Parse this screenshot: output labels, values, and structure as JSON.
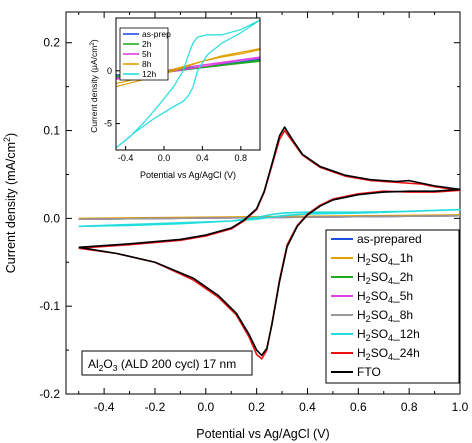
{
  "chart_data": [
    {
      "id": "main",
      "type": "line",
      "xlabel": "Potential vs  Ag/AgCl (V)",
      "ylabel": "Current density (mA/cm",
      "ylabel_sup": "2",
      "ylabel_close": ")",
      "xlim": [
        -0.55,
        1.0
      ],
      "ylim": [
        -0.2,
        0.235
      ],
      "xticks": [
        -0.4,
        -0.2,
        0.0,
        0.2,
        0.4,
        0.6,
        0.8,
        1.0
      ],
      "xtick_labels": [
        "-0.4",
        "-0.2",
        "0.0",
        "0.2",
        "0.4",
        "0.6",
        "0.8",
        "1.0"
      ],
      "yticks": [
        -0.2,
        -0.1,
        0.0,
        0.1,
        0.2
      ],
      "ytick_labels": [
        "-0.2",
        "-0.1",
        "0.0",
        "0.1",
        "0.2"
      ],
      "grid": false,
      "legend_position": "bottom-right",
      "annotation": {
        "prefix": "Al",
        "sub1": "2",
        "mid": "O",
        "sub2": "3",
        "suffix": " (ALD 200 cycl) 17 nm"
      },
      "series": [
        {
          "name": "as-prepared",
          "color": "#1f4fe0",
          "kind": "flat",
          "x": [
            -0.5,
            1.0
          ],
          "y": [
            -0.001,
            0.003
          ]
        },
        {
          "name": "H2SO4_1h",
          "label_prefix": "H",
          "label_sub": "2",
          "label_suffix": "SO",
          "label_sub2": "4",
          "label_tail": "_1h",
          "color": "#e0a000",
          "kind": "flat",
          "x": [
            -0.5,
            1.0
          ],
          "y": [
            0.0,
            0.004
          ]
        },
        {
          "name": "H2SO4_2h",
          "label_prefix": "H",
          "label_sub": "2",
          "label_suffix": "SO",
          "label_sub2": "4",
          "label_tail": "_2h",
          "color": "#22aa22",
          "kind": "flat",
          "x": [
            -0.5,
            1.0
          ],
          "y": [
            -0.001,
            0.003
          ]
        },
        {
          "name": "H2SO4_5h",
          "label_prefix": "H",
          "label_sub": "2",
          "label_suffix": "SO",
          "label_sub2": "4",
          "label_tail": "_5h",
          "color": "#e040e0",
          "kind": "flat",
          "x": [
            -0.5,
            1.0
          ],
          "y": [
            -0.001,
            0.003
          ]
        },
        {
          "name": "H2SO4_8h",
          "label_prefix": "H",
          "label_sub": "2",
          "label_suffix": "SO",
          "label_sub2": "4",
          "label_tail": "_8h",
          "color": "#999999",
          "kind": "flat",
          "x": [
            -0.5,
            1.0
          ],
          "y": [
            -0.001,
            0.003
          ]
        },
        {
          "name": "H2SO4_12h",
          "label_prefix": "H",
          "label_sub": "2",
          "label_suffix": "SO",
          "label_sub2": "4",
          "label_tail": "_12h",
          "color": "#22dddd",
          "kind": "loop",
          "forward": {
            "x": [
              -0.5,
              -0.3,
              -0.1,
              0.1,
              0.2,
              0.25,
              0.3,
              0.4,
              0.6,
              0.8,
              1.0
            ],
            "y": [
              -0.009,
              -0.008,
              -0.006,
              -0.003,
              0.001,
              0.004,
              0.006,
              0.007,
              0.007,
              0.008,
              0.01
            ]
          },
          "reverse": {
            "x": [
              1.0,
              0.8,
              0.6,
              0.4,
              0.3,
              0.2,
              0.1,
              -0.1,
              -0.3,
              -0.5
            ],
            "y": [
              0.01,
              0.008,
              0.006,
              0.005,
              0.003,
              -0.001,
              -0.003,
              -0.005,
              -0.007,
              -0.009
            ]
          }
        },
        {
          "name": "H2SO4_24h",
          "label_prefix": "H",
          "label_sub": "2",
          "label_suffix": "SO",
          "label_sub2": "4",
          "label_tail": "_24h",
          "color": "#ee1111",
          "kind": "loop",
          "forward": {
            "x": [
              -0.5,
              -0.3,
              -0.1,
              0.0,
              0.1,
              0.15,
              0.2,
              0.23,
              0.26,
              0.29,
              0.31,
              0.34,
              0.38,
              0.45,
              0.55,
              0.65,
              0.75,
              0.8,
              0.85,
              0.9,
              1.0
            ],
            "y": [
              -0.034,
              -0.03,
              -0.025,
              -0.02,
              -0.012,
              -0.003,
              0.01,
              0.03,
              0.06,
              0.09,
              0.1,
              0.088,
              0.072,
              0.058,
              0.048,
              0.043,
              0.041,
              0.04,
              0.039,
              0.036,
              0.032
            ]
          },
          "reverse": {
            "x": [
              1.0,
              0.9,
              0.8,
              0.7,
              0.6,
              0.5,
              0.45,
              0.4,
              0.36,
              0.32,
              0.29,
              0.26,
              0.24,
              0.22,
              0.2,
              0.17,
              0.12,
              0.05,
              -0.05,
              -0.2,
              -0.35,
              -0.5
            ],
            "y": [
              0.032,
              0.03,
              0.03,
              0.031,
              0.028,
              0.022,
              0.015,
              0.005,
              -0.008,
              -0.03,
              -0.07,
              -0.12,
              -0.15,
              -0.16,
              -0.155,
              -0.135,
              -0.11,
              -0.09,
              -0.07,
              -0.05,
              -0.04,
              -0.034
            ]
          }
        },
        {
          "name": "FTO",
          "color": "#000000",
          "kind": "loop",
          "forward": {
            "x": [
              -0.5,
              -0.3,
              -0.1,
              0.0,
              0.1,
              0.15,
              0.2,
              0.23,
              0.26,
              0.29,
              0.31,
              0.34,
              0.38,
              0.45,
              0.55,
              0.65,
              0.75,
              0.8,
              0.85,
              0.9,
              1.0
            ],
            "y": [
              -0.033,
              -0.029,
              -0.024,
              -0.019,
              -0.011,
              -0.002,
              0.011,
              0.031,
              0.062,
              0.094,
              0.104,
              0.09,
              0.073,
              0.059,
              0.049,
              0.044,
              0.042,
              0.043,
              0.04,
              0.037,
              0.033
            ]
          },
          "reverse": {
            "x": [
              1.0,
              0.9,
              0.8,
              0.7,
              0.6,
              0.5,
              0.45,
              0.4,
              0.36,
              0.32,
              0.29,
              0.26,
              0.24,
              0.22,
              0.2,
              0.17,
              0.12,
              0.05,
              -0.05,
              -0.2,
              -0.35,
              -0.5
            ],
            "y": [
              0.033,
              0.031,
              0.031,
              0.03,
              0.027,
              0.021,
              0.014,
              0.004,
              -0.009,
              -0.032,
              -0.072,
              -0.121,
              -0.148,
              -0.156,
              -0.15,
              -0.132,
              -0.108,
              -0.088,
              -0.068,
              -0.05,
              -0.04,
              -0.033
            ]
          }
        }
      ]
    },
    {
      "id": "inset",
      "type": "line",
      "xlabel": "Potential vs  Ag/AgCl (V)",
      "ylabel": "Current density (μA/cm",
      "ylabel_sup": "2",
      "ylabel_close": ")",
      "xlim": [
        -0.5,
        1.0
      ],
      "ylim": [
        -7.5,
        5.0
      ],
      "xticks": [
        -0.4,
        0.0,
        0.4,
        0.8
      ],
      "xtick_labels": [
        "-0.4",
        "0.0",
        "0.4",
        "0.8"
      ],
      "yticks": [
        -5,
        0
      ],
      "ytick_labels": [
        "-5",
        "0"
      ],
      "grid": false,
      "legend_position": "top-left",
      "series": [
        {
          "name": "as-prep",
          "color": "#1f4fe0",
          "x": [
            -0.5,
            -0.2,
            0.0,
            0.2,
            0.4,
            0.6,
            0.8,
            1.0
          ],
          "y": [
            -0.5,
            -0.3,
            -0.1,
            0.1,
            0.3,
            0.5,
            0.8,
            1.0
          ],
          "x2": [
            1.0,
            0.6,
            0.2,
            -0.2,
            -0.5
          ],
          "y2": [
            1.1,
            0.6,
            0.2,
            -0.2,
            -0.4
          ]
        },
        {
          "name": "2h",
          "color": "#22aa22",
          "x": [
            -0.5,
            -0.2,
            0.0,
            0.2,
            0.4,
            0.6,
            0.8,
            1.0
          ],
          "y": [
            -0.6,
            -0.35,
            -0.15,
            0.05,
            0.3,
            0.5,
            0.7,
            0.9
          ],
          "x2": [
            1.0,
            0.6,
            0.2,
            -0.2,
            -0.5
          ],
          "y2": [
            1.0,
            0.55,
            0.15,
            -0.25,
            -0.5
          ]
        },
        {
          "name": "5h",
          "color": "#e040e0",
          "x": [
            -0.5,
            -0.2,
            0.0,
            0.2,
            0.4,
            0.6,
            0.8,
            1.0
          ],
          "y": [
            -0.8,
            -0.45,
            -0.2,
            0.1,
            0.4,
            0.7,
            1.0,
            1.2
          ],
          "x2": [
            1.0,
            0.6,
            0.2,
            -0.2,
            -0.5
          ],
          "y2": [
            1.3,
            0.8,
            0.3,
            -0.3,
            -0.7
          ]
        },
        {
          "name": "8h",
          "color": "#e0a000",
          "x": [
            -0.5,
            -0.2,
            0.0,
            0.2,
            0.4,
            0.6,
            0.8,
            1.0
          ],
          "y": [
            -1.5,
            -0.8,
            -0.3,
            0.3,
            0.9,
            1.3,
            1.6,
            2.0
          ],
          "x2": [
            1.0,
            0.6,
            0.2,
            -0.2,
            -0.5
          ],
          "y2": [
            2.1,
            1.4,
            0.4,
            -0.6,
            -1.2
          ]
        },
        {
          "name": "12h",
          "color": "#22dddd",
          "x": [
            -0.5,
            -0.35,
            -0.2,
            -0.05,
            0.1,
            0.2,
            0.25,
            0.3,
            0.35,
            0.45,
            0.6,
            0.8,
            1.0
          ],
          "y": [
            -7.3,
            -6.2,
            -4.8,
            -3.2,
            -1.5,
            0.0,
            1.4,
            2.6,
            3.2,
            3.4,
            3.4,
            3.9,
            4.8
          ],
          "x2": [
            1.0,
            0.8,
            0.6,
            0.45,
            0.35,
            0.3,
            0.25,
            0.2,
            0.1,
            -0.1,
            -0.3,
            -0.5
          ],
          "y2": [
            4.8,
            3.6,
            2.6,
            1.5,
            0.0,
            -1.6,
            -2.4,
            -2.9,
            -3.4,
            -4.5,
            -5.8,
            -7.3
          ]
        }
      ]
    }
  ]
}
